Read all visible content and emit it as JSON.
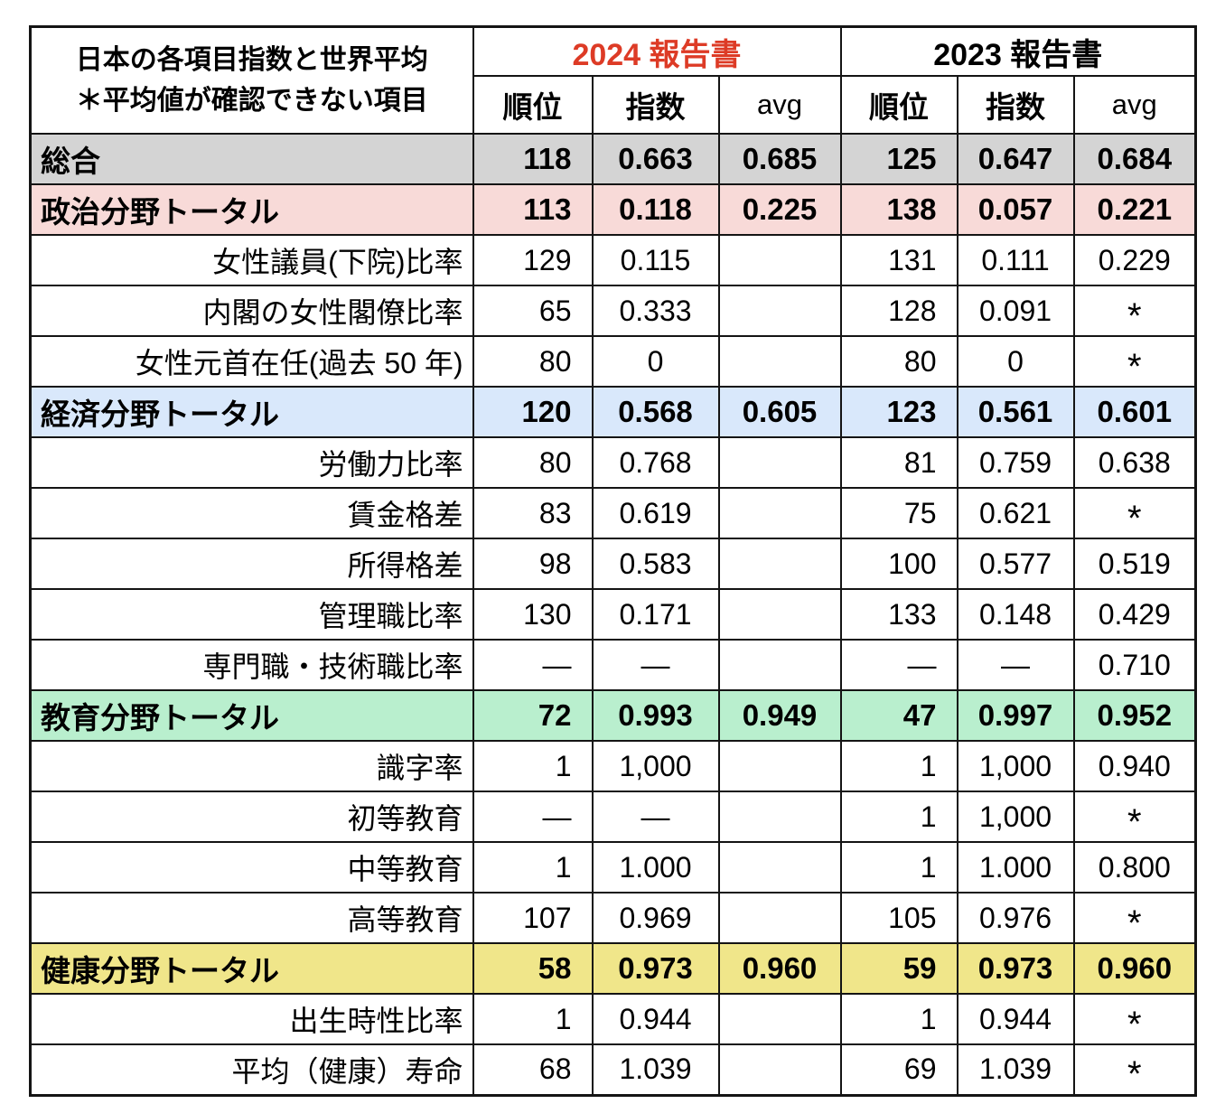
{
  "header": {
    "title_line1": "日本の各項目指数と世界平均",
    "title_line2": "＊平均値が確認できない項目",
    "group_2024": "2024 報告書",
    "group_2023": "2023 報告書",
    "sub": {
      "rank": "順位",
      "index": "指数",
      "avg": "avg"
    }
  },
  "colors": {
    "accent_red": "#dd3b26",
    "border": "#141414",
    "row_gray": "#d4d4d4",
    "row_pink": "#f8dad8",
    "row_blue": "#d9e8fb",
    "row_green": "#b9efce",
    "row_yellow": "#f0e68a"
  },
  "table": {
    "rows": [
      {
        "label": "総合",
        "kind": "total",
        "color": "gray",
        "values": [
          "118",
          "0.663",
          "0.685",
          "125",
          "0.647",
          "0.684"
        ]
      },
      {
        "label": "政治分野トータル",
        "kind": "total",
        "color": "pink",
        "values": [
          "113",
          "0.118",
          "0.225",
          "138",
          "0.057",
          "0.221"
        ]
      },
      {
        "label": "女性議員(下院)比率",
        "kind": "item",
        "color": null,
        "values": [
          "129",
          "0.115",
          "",
          "131",
          "0.111",
          "0.229"
        ]
      },
      {
        "label": "内閣の女性閣僚比率",
        "kind": "item",
        "color": null,
        "values": [
          "65",
          "0.333",
          "",
          "128",
          "0.091",
          "*"
        ]
      },
      {
        "label": "女性元首在任(過去 50 年)",
        "kind": "item",
        "color": null,
        "values": [
          "80",
          "0",
          "",
          "80",
          "0",
          "*"
        ]
      },
      {
        "label": "経済分野トータル",
        "kind": "total",
        "color": "blue",
        "values": [
          "120",
          "0.568",
          "0.605",
          "123",
          "0.561",
          "0.601"
        ]
      },
      {
        "label": "労働力比率",
        "kind": "item",
        "color": null,
        "values": [
          "80",
          "0.768",
          "",
          "81",
          "0.759",
          "0.638"
        ]
      },
      {
        "label": "賃金格差",
        "kind": "item",
        "color": null,
        "values": [
          "83",
          "0.619",
          "",
          "75",
          "0.621",
          "*"
        ]
      },
      {
        "label": "所得格差",
        "kind": "item",
        "color": null,
        "values": [
          "98",
          "0.583",
          "",
          "100",
          "0.577",
          "0.519"
        ]
      },
      {
        "label": "管理職比率",
        "kind": "item",
        "color": null,
        "values": [
          "130",
          "0.171",
          "",
          "133",
          "0.148",
          "0.429"
        ]
      },
      {
        "label": "専門職・技術職比率",
        "kind": "item",
        "color": null,
        "values": [
          "—",
          "—",
          "",
          "—",
          "—",
          "0.710"
        ]
      },
      {
        "label": "教育分野トータル",
        "kind": "total",
        "color": "green",
        "values": [
          "72",
          "0.993",
          "0.949",
          "47",
          "0.997",
          "0.952"
        ]
      },
      {
        "label": "識字率",
        "kind": "item",
        "color": null,
        "values": [
          "1",
          "1,000",
          "",
          "1",
          "1,000",
          "0.940"
        ]
      },
      {
        "label": "初等教育",
        "kind": "item",
        "color": null,
        "values": [
          "—",
          "—",
          "",
          "1",
          "1,000",
          "*"
        ]
      },
      {
        "label": "中等教育",
        "kind": "item",
        "color": null,
        "values": [
          "1",
          "1.000",
          "",
          "1",
          "1.000",
          "0.800"
        ]
      },
      {
        "label": "高等教育",
        "kind": "item",
        "color": null,
        "values": [
          "107",
          "0.969",
          "",
          "105",
          "0.976",
          "*"
        ]
      },
      {
        "label": "健康分野トータル",
        "kind": "total",
        "color": "yellow",
        "values": [
          "58",
          "0.973",
          "0.960",
          "59",
          "0.973",
          "0.960"
        ]
      },
      {
        "label": "出生時性比率",
        "kind": "item",
        "color": null,
        "values": [
          "1",
          "0.944",
          "",
          "1",
          "0.944",
          "*"
        ]
      },
      {
        "label": "平均（健康）寿命",
        "kind": "item",
        "color": null,
        "values": [
          "68",
          "1.039",
          "",
          "69",
          "1.039",
          "*"
        ]
      }
    ]
  },
  "chart_data": {
    "type": "table",
    "title": "日本の各項目指数と世界平均",
    "note": "＊平均値が確認できない項目",
    "column_groups": [
      "2024 報告書",
      "2023 報告書"
    ],
    "columns": [
      "項目",
      "2024 順位",
      "2024 指数",
      "2024 avg",
      "2023 順位",
      "2023 指数",
      "2023 avg"
    ],
    "rows": [
      [
        "総合",
        "118",
        "0.663",
        "0.685",
        "125",
        "0.647",
        "0.684"
      ],
      [
        "政治分野トータル",
        "113",
        "0.118",
        "0.225",
        "138",
        "0.057",
        "0.221"
      ],
      [
        "女性議員(下院)比率",
        "129",
        "0.115",
        "",
        "131",
        "0.111",
        "0.229"
      ],
      [
        "内閣の女性閣僚比率",
        "65",
        "0.333",
        "",
        "128",
        "0.091",
        "*"
      ],
      [
        "女性元首在任(過去 50 年)",
        "80",
        "0",
        "",
        "80",
        "0",
        "*"
      ],
      [
        "経済分野トータル",
        "120",
        "0.568",
        "0.605",
        "123",
        "0.561",
        "0.601"
      ],
      [
        "労働力比率",
        "80",
        "0.768",
        "",
        "81",
        "0.759",
        "0.638"
      ],
      [
        "賃金格差",
        "83",
        "0.619",
        "",
        "75",
        "0.621",
        "*"
      ],
      [
        "所得格差",
        "98",
        "0.583",
        "",
        "100",
        "0.577",
        "0.519"
      ],
      [
        "管理職比率",
        "130",
        "0.171",
        "",
        "133",
        "0.148",
        "0.429"
      ],
      [
        "専門職・技術職比率",
        "—",
        "—",
        "",
        "—",
        "—",
        "0.710"
      ],
      [
        "教育分野トータル",
        "72",
        "0.993",
        "0.949",
        "47",
        "0.997",
        "0.952"
      ],
      [
        "識字率",
        "1",
        "1,000",
        "",
        "1",
        "1,000",
        "0.940"
      ],
      [
        "初等教育",
        "—",
        "—",
        "",
        "1",
        "1,000",
        "*"
      ],
      [
        "中等教育",
        "1",
        "1.000",
        "",
        "1",
        "1.000",
        "0.800"
      ],
      [
        "高等教育",
        "107",
        "0.969",
        "",
        "105",
        "0.976",
        "*"
      ],
      [
        "健康分野トータル",
        "58",
        "0.973",
        "0.960",
        "59",
        "0.973",
        "0.960"
      ],
      [
        "出生時性比率",
        "1",
        "0.944",
        "",
        "1",
        "0.944",
        "*"
      ],
      [
        "平均（健康）寿命",
        "68",
        "1.039",
        "",
        "69",
        "1.039",
        "*"
      ]
    ]
  }
}
